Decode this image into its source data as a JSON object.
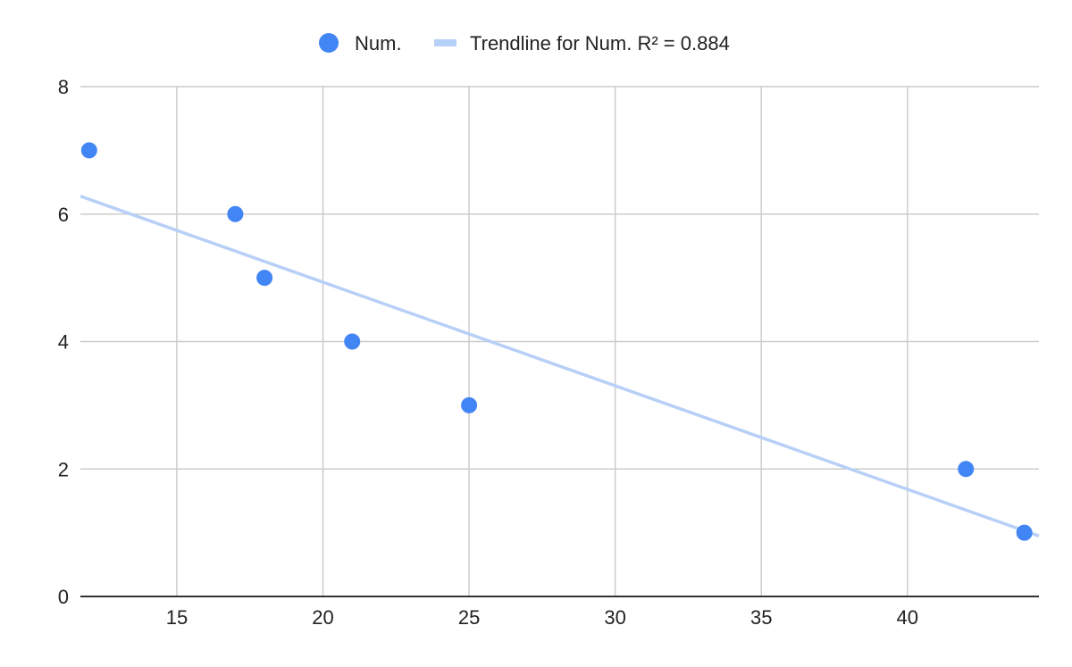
{
  "chart_data": {
    "type": "scatter",
    "title": "",
    "xlabel": "",
    "ylabel": "",
    "xlim": [
      11.7,
      44.5
    ],
    "ylim": [
      0,
      8
    ],
    "x_ticks": [
      15,
      20,
      25,
      30,
      35,
      40
    ],
    "y_ticks": [
      0,
      2,
      4,
      6,
      8
    ],
    "grid": true,
    "legend_position": "top",
    "series": [
      {
        "name": "Num.",
        "color": "#4285f4",
        "points": [
          {
            "x": 12,
            "y": 7
          },
          {
            "x": 17,
            "y": 6
          },
          {
            "x": 18,
            "y": 5
          },
          {
            "x": 21,
            "y": 4
          },
          {
            "x": 25,
            "y": 3
          },
          {
            "x": 42,
            "y": 2
          },
          {
            "x": 44,
            "y": 1
          }
        ]
      }
    ],
    "trendline": {
      "label": "Trendline for Num. R² = 0.884",
      "color": "#b7d0f7",
      "x_start": 11.7,
      "y_start": 6.28,
      "x_end": 44.5,
      "y_end": 0.95
    }
  }
}
